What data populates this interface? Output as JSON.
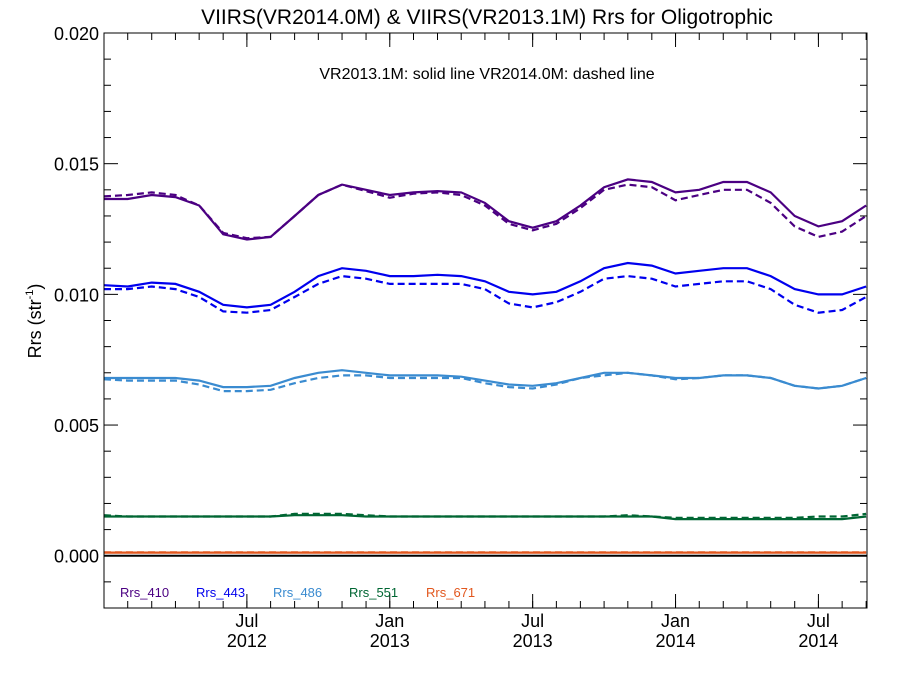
{
  "chart_data": {
    "type": "line",
    "title": "VIIRS(VR2014.0M) & VIIRS(VR2013.1M)  Rrs for Oligotrophic",
    "subtitle": "VR2013.1M: solid line   VR2014.0M: dashed line",
    "ylabel_main": "Rrs (str",
    "ylabel_sup": "-1",
    "ylabel_close": ")",
    "ylim": [
      -0.002,
      0.02
    ],
    "xlim": [
      2012.0,
      2014.67
    ],
    "yticks": [
      {
        "value": 0.0,
        "label": "0.000"
      },
      {
        "value": 0.005,
        "label": "0.005"
      },
      {
        "value": 0.01,
        "label": "0.010"
      },
      {
        "value": 0.015,
        "label": "0.015"
      },
      {
        "value": 0.02,
        "label": "0.020"
      }
    ],
    "xticks": [
      {
        "value": 2012.5,
        "month": "Jul",
        "year": "2012"
      },
      {
        "value": 2013.0,
        "month": "Jan",
        "year": "2013"
      },
      {
        "value": 2013.5,
        "month": "Jul",
        "year": "2013"
      },
      {
        "value": 2014.0,
        "month": "Jan",
        "year": "2014"
      },
      {
        "value": 2014.5,
        "month": "Jul",
        "year": "2014"
      }
    ],
    "x": [
      2012.0,
      2012.083,
      2012.167,
      2012.25,
      2012.333,
      2012.417,
      2012.5,
      2012.583,
      2012.667,
      2012.75,
      2012.833,
      2012.917,
      2013.0,
      2013.083,
      2013.167,
      2013.25,
      2013.333,
      2013.417,
      2013.5,
      2013.583,
      2013.667,
      2013.75,
      2013.833,
      2013.917,
      2014.0,
      2014.083,
      2014.167,
      2014.25,
      2014.333,
      2014.417,
      2014.5,
      2014.583,
      2014.667
    ],
    "series": [
      {
        "name": "Rrs_410",
        "color": "#4B0082",
        "solid": [
          0.01365,
          0.01365,
          0.0138,
          0.01372,
          0.0134,
          0.0123,
          0.0121,
          0.0122,
          0.013,
          0.0138,
          0.0142,
          0.014,
          0.0138,
          0.0139,
          0.01395,
          0.0139,
          0.0135,
          0.0128,
          0.01255,
          0.0128,
          0.0134,
          0.0141,
          0.0144,
          0.0143,
          0.0139,
          0.014,
          0.0143,
          0.0143,
          0.0139,
          0.013,
          0.0126,
          0.0128,
          0.0134
        ],
        "dashed": [
          0.01375,
          0.0138,
          0.0139,
          0.0138,
          0.0134,
          0.01235,
          0.01215,
          0.0122,
          0.013,
          0.0138,
          0.0142,
          0.01395,
          0.0137,
          0.01385,
          0.0139,
          0.0138,
          0.0134,
          0.0127,
          0.01245,
          0.0127,
          0.0133,
          0.014,
          0.0142,
          0.0141,
          0.0136,
          0.0138,
          0.014,
          0.014,
          0.0135,
          0.0126,
          0.0122,
          0.0124,
          0.013
        ]
      },
      {
        "name": "Rrs_443",
        "color": "#0000EE",
        "solid": [
          0.01035,
          0.0103,
          0.01045,
          0.0104,
          0.0101,
          0.0096,
          0.0095,
          0.0096,
          0.0101,
          0.0107,
          0.011,
          0.0109,
          0.0107,
          0.0107,
          0.01075,
          0.0107,
          0.0105,
          0.0101,
          0.01,
          0.0101,
          0.0105,
          0.011,
          0.0112,
          0.0111,
          0.0108,
          0.0109,
          0.011,
          0.011,
          0.0107,
          0.0102,
          0.01,
          0.01,
          0.0103
        ],
        "dashed": [
          0.0102,
          0.0102,
          0.0103,
          0.0102,
          0.0099,
          0.00935,
          0.0093,
          0.0094,
          0.0099,
          0.0104,
          0.0107,
          0.0106,
          0.0104,
          0.0104,
          0.0104,
          0.0104,
          0.0102,
          0.00965,
          0.0095,
          0.0097,
          0.0101,
          0.0106,
          0.0107,
          0.0106,
          0.0103,
          0.0104,
          0.0105,
          0.0105,
          0.0102,
          0.0096,
          0.0093,
          0.0094,
          0.0099
        ]
      },
      {
        "name": "Rrs_486",
        "color": "#3A8BD0",
        "solid": [
          0.0068,
          0.0068,
          0.0068,
          0.0068,
          0.0067,
          0.00645,
          0.00645,
          0.0065,
          0.0068,
          0.007,
          0.0071,
          0.007,
          0.0069,
          0.0069,
          0.0069,
          0.00685,
          0.0067,
          0.00655,
          0.0065,
          0.0066,
          0.0068,
          0.007,
          0.007,
          0.0069,
          0.0068,
          0.0068,
          0.0069,
          0.0069,
          0.0068,
          0.0065,
          0.0064,
          0.0065,
          0.0068
        ],
        "dashed": [
          0.00675,
          0.0067,
          0.0067,
          0.0067,
          0.00655,
          0.0063,
          0.0063,
          0.00635,
          0.0066,
          0.0068,
          0.0069,
          0.0069,
          0.0068,
          0.0068,
          0.0068,
          0.0068,
          0.0066,
          0.00645,
          0.0064,
          0.00655,
          0.0068,
          0.0069,
          0.007,
          0.0069,
          0.00675,
          0.0068,
          0.0069,
          0.0069,
          0.0068,
          0.0065,
          0.0064,
          0.0065,
          0.0068
        ]
      },
      {
        "name": "Rrs_551",
        "color": "#006633",
        "solid": [
          0.0015,
          0.0015,
          0.0015,
          0.0015,
          0.0015,
          0.0015,
          0.0015,
          0.0015,
          0.00155,
          0.00155,
          0.00155,
          0.0015,
          0.0015,
          0.0015,
          0.0015,
          0.0015,
          0.0015,
          0.0015,
          0.0015,
          0.0015,
          0.0015,
          0.0015,
          0.0015,
          0.0015,
          0.0014,
          0.0014,
          0.0014,
          0.0014,
          0.0014,
          0.0014,
          0.0014,
          0.0014,
          0.0015
        ],
        "dashed": [
          0.00155,
          0.0015,
          0.0015,
          0.0015,
          0.0015,
          0.0015,
          0.0015,
          0.0015,
          0.0016,
          0.0016,
          0.0016,
          0.00155,
          0.0015,
          0.0015,
          0.0015,
          0.0015,
          0.0015,
          0.0015,
          0.0015,
          0.0015,
          0.0015,
          0.0015,
          0.00155,
          0.0015,
          0.00145,
          0.00145,
          0.00145,
          0.00145,
          0.00145,
          0.00145,
          0.0015,
          0.0015,
          0.0016
        ]
      },
      {
        "name": "Rrs_671",
        "color": "#E2571E",
        "solid": [
          0.00012,
          0.00012,
          0.00012,
          0.00012,
          0.00012,
          0.00012,
          0.00012,
          0.00012,
          0.00012,
          0.00012,
          0.00012,
          0.00012,
          0.00012,
          0.00012,
          0.00012,
          0.00012,
          0.00012,
          0.00012,
          0.00012,
          0.00012,
          0.00012,
          0.00012,
          0.00012,
          0.00012,
          0.00012,
          0.00012,
          0.00012,
          0.00012,
          0.00012,
          0.00012,
          0.00012,
          0.00012,
          0.00012
        ],
        "dashed": [
          0.00013,
          0.00013,
          0.00013,
          0.00013,
          0.00013,
          0.00013,
          0.00013,
          0.00013,
          0.00013,
          0.00013,
          0.00013,
          0.00013,
          0.00013,
          0.00013,
          0.00013,
          0.00013,
          0.00013,
          0.00013,
          0.00013,
          0.00013,
          0.00013,
          0.00013,
          0.00013,
          0.00013,
          0.00013,
          0.00013,
          0.00013,
          0.00013,
          0.00013,
          0.00013,
          0.00013,
          0.00013,
          0.00013
        ]
      }
    ],
    "zero_line": 0.0,
    "legend_position": "bottom-left",
    "grid": false
  }
}
